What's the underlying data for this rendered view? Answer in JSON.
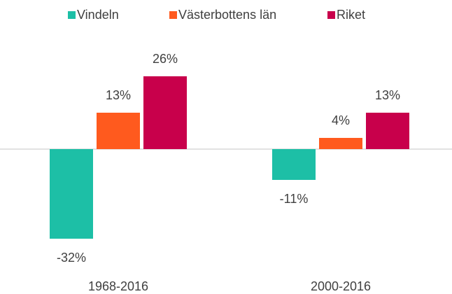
{
  "chart_data": {
    "type": "bar",
    "categories": [
      "1968-2016",
      "2000-2016"
    ],
    "series": [
      {
        "name": "Vindeln",
        "color": "#1dbfa6",
        "values": [
          -32,
          -11
        ],
        "value_labels": [
          "-32%",
          "-11%"
        ]
      },
      {
        "name": "Västerbottens län",
        "color": "#ff5a1e",
        "values": [
          13,
          4
        ],
        "value_labels": [
          "13%",
          "4%"
        ]
      },
      {
        "name": "Riket",
        "color": "#c8004b",
        "values": [
          26,
          13
        ],
        "value_labels": [
          "26%",
          "13%"
        ]
      }
    ],
    "ylim": [
      -40,
      30
    ],
    "legend": "top"
  }
}
